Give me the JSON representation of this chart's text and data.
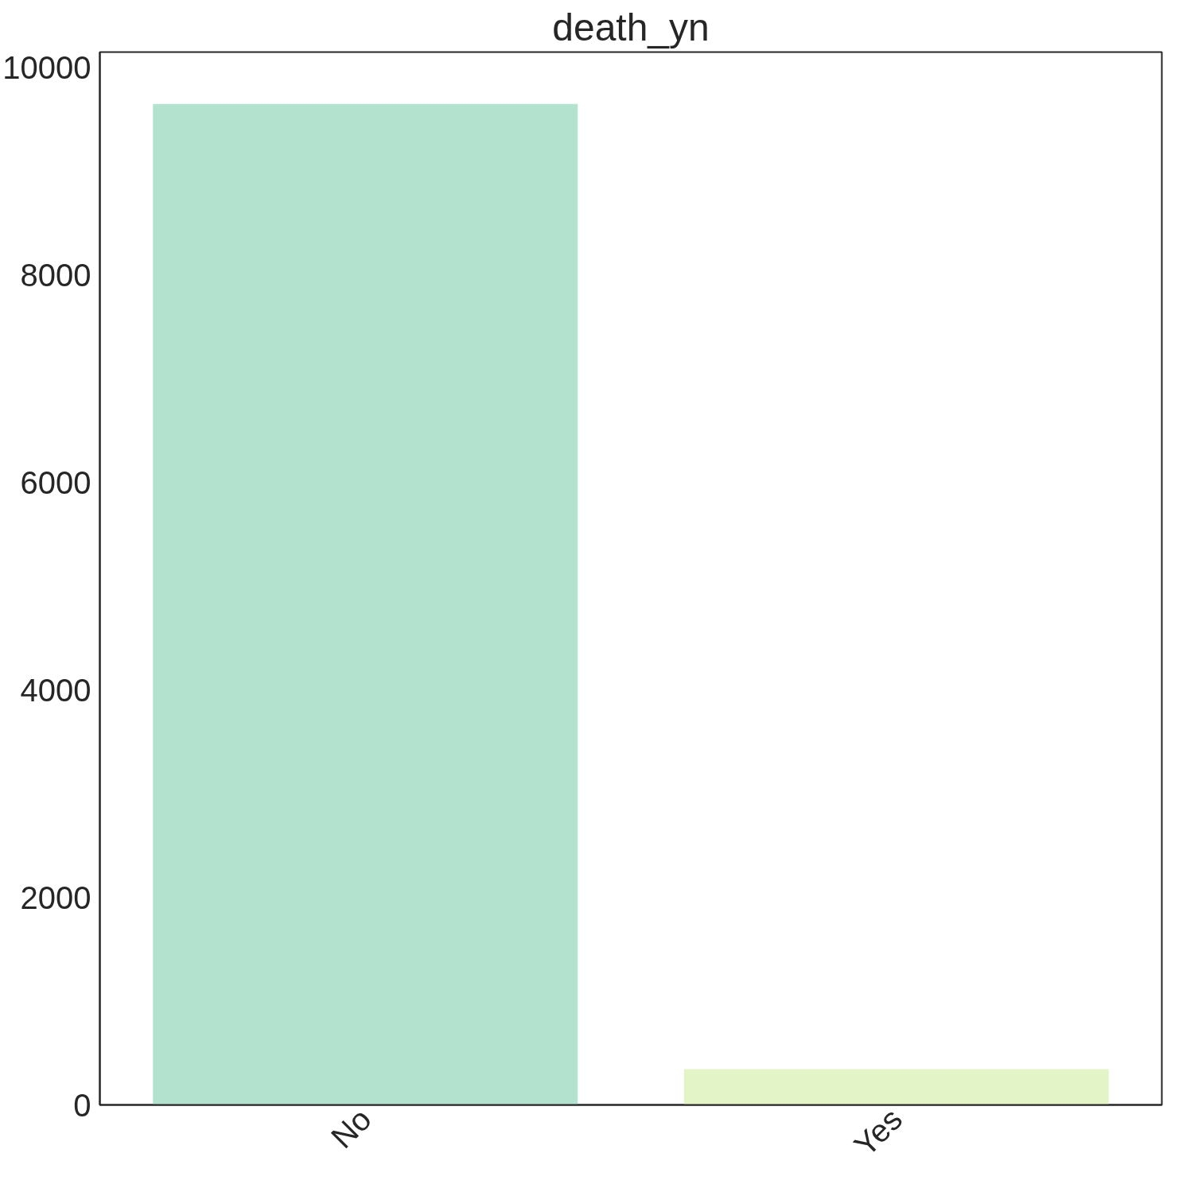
{
  "chart_data": {
    "type": "bar",
    "title": "death_yn",
    "categories": [
      "No",
      "Yes"
    ],
    "values": [
      9650,
      345
    ],
    "colors": [
      "#b3e3cf",
      "#e3f4c7"
    ],
    "ylim": [
      0,
      10150
    ],
    "yticks": [
      0,
      2000,
      4000,
      6000,
      8000,
      10000
    ],
    "grid": false
  }
}
